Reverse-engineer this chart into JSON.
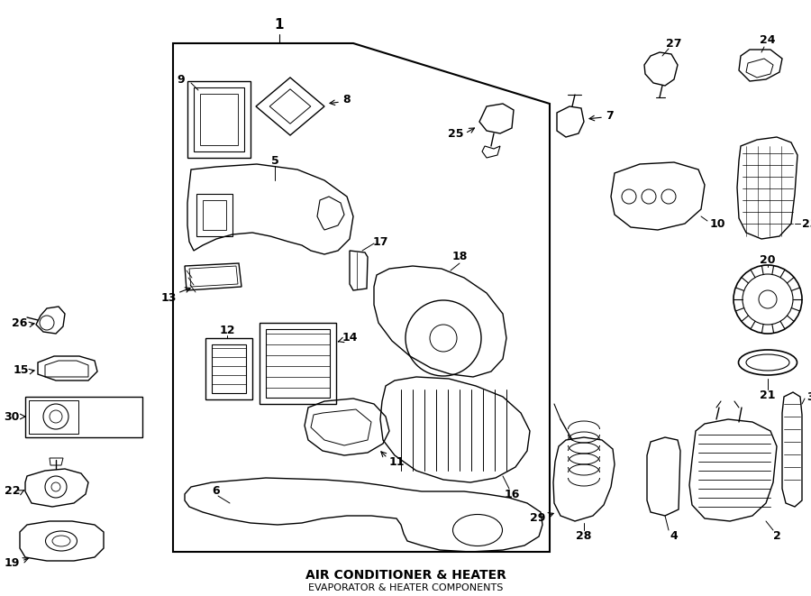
{
  "title": "AIR CONDITIONER & HEATER",
  "subtitle": "EVAPORATOR & HEATER COMPONENTS",
  "bg_color": "#ffffff",
  "line_color": "#000000",
  "text_color": "#000000",
  "fig_width": 9.0,
  "fig_height": 6.61,
  "dpi": 100
}
